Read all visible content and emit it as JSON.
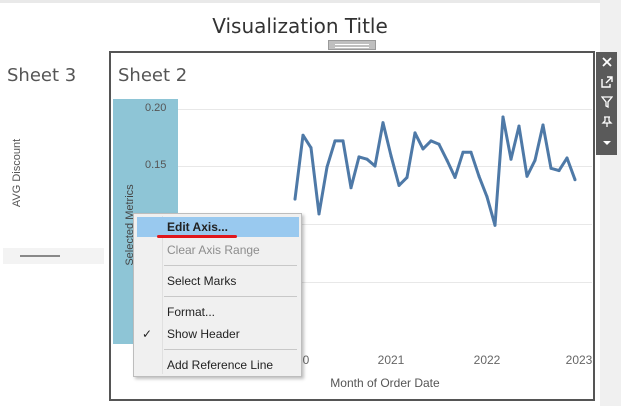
{
  "dashboard": {
    "title": "Visualization Title"
  },
  "sheet3": {
    "title": "Sheet 3",
    "axis_label": "AVG Discount"
  },
  "sheet2": {
    "title": "Sheet 2",
    "y_axis_label": "Selected Metrics",
    "x_axis_title": "Month of Order Date",
    "y_ticks": [
      "0.20",
      "0.15"
    ],
    "x_ticks": [
      "0",
      "2021",
      "2022",
      "2023"
    ]
  },
  "toolbar": {
    "items": [
      {
        "icon": "close-icon",
        "label": "Remove"
      },
      {
        "icon": "popout-icon",
        "label": "Go to sheet"
      },
      {
        "icon": "filter-icon",
        "label": "Use as filter"
      },
      {
        "icon": "pin-icon",
        "label": "Pin"
      },
      {
        "icon": "chevron-down-icon",
        "label": "More options"
      }
    ]
  },
  "context_menu": {
    "items": [
      {
        "label": "Edit Axis...",
        "state": "highlighted"
      },
      {
        "label": "Clear Axis Range",
        "state": "disabled"
      },
      {
        "label": "Select Marks",
        "state": "normal"
      },
      {
        "label": "Format...",
        "state": "normal"
      },
      {
        "label": "Show Header",
        "state": "checked"
      },
      {
        "label": "Add Reference Line",
        "state": "normal"
      }
    ]
  },
  "colors": {
    "line": "#4e79a7",
    "axis_band": "#8ec5d6",
    "menu_highlight": "#99c9ef",
    "annotation": "#e0171c"
  },
  "chart_data": {
    "type": "line",
    "xlabel": "Month of Order Date",
    "ylabel": "Selected Metrics",
    "xlim": [
      "2019-12",
      "2023-01"
    ],
    "ylim": [
      0.0,
      0.2
    ],
    "series": [
      {
        "x": [
          "2020-01",
          "2020-02",
          "2020-03",
          "2020-04",
          "2020-05",
          "2020-06",
          "2020-07",
          "2020-08",
          "2020-09",
          "2020-10",
          "2020-11",
          "2020-12",
          "2021-01",
          "2021-02",
          "2021-03",
          "2021-04",
          "2021-05",
          "2021-06",
          "2021-07",
          "2021-08",
          "2021-09",
          "2021-10",
          "2021-11",
          "2021-12",
          "2022-01",
          "2022-02",
          "2022-03",
          "2022-04",
          "2022-05",
          "2022-06",
          "2022-07",
          "2022-08",
          "2022-09",
          "2022-10",
          "2022-11",
          "2022-12"
        ],
        "y": [
          0.121,
          0.177,
          0.166,
          0.108,
          0.149,
          0.172,
          0.172,
          0.131,
          0.158,
          0.156,
          0.15,
          0.188,
          0.159,
          0.133,
          0.14,
          0.179,
          0.165,
          0.172,
          0.169,
          0.155,
          0.14,
          0.162,
          0.162,
          0.141,
          0.123,
          0.098,
          0.193,
          0.156,
          0.185,
          0.141,
          0.155,
          0.186,
          0.148,
          0.146,
          0.157,
          0.138
        ]
      }
    ]
  }
}
